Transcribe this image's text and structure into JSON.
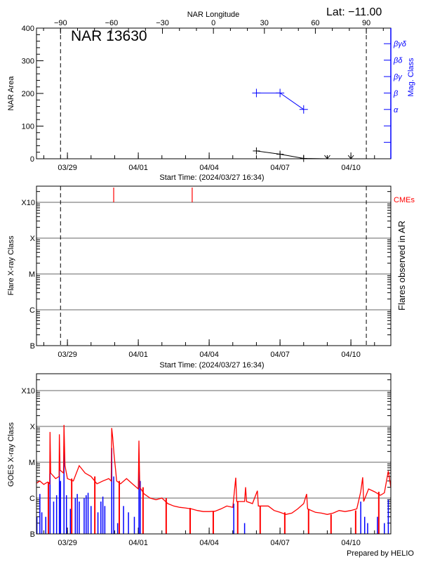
{
  "colors": {
    "axis": "#000000",
    "grid": "#999999",
    "long_channel": "#ff0000",
    "short_channel": "#0000ff",
    "mag_class": "#0000ff",
    "cme": "#ff0000"
  },
  "footer": "Prepared by HELIO",
  "chart_data": [
    {
      "type": "line",
      "title": "NAR 13630",
      "annotation": "Lat: −11.00",
      "xlabel": "Start Time: (2024/03/27 16:34)",
      "x_range": [
        "2024-03-27 16:34",
        "2024-04-11 16:34"
      ],
      "x_ticks": [
        "03/29",
        "04/01",
        "04/04",
        "04/07",
        "04/10"
      ],
      "top_axis": {
        "label": "NAR Longitude",
        "ticks": [
          -90,
          -60,
          -30,
          0,
          30,
          60,
          90
        ],
        "tick_labels": [
          "−90",
          "−60",
          "−30",
          "0",
          "30",
          "60",
          "90"
        ]
      },
      "ylabel": "NAR Area",
      "ylim": [
        0,
        400
      ],
      "y_ticks": [
        0,
        100,
        200,
        300,
        400
      ],
      "y2label": "Mag. Class",
      "y2_ticks": [
        "",
        "",
        "α",
        "β",
        "βγ",
        "βδ",
        "βγδ"
      ],
      "limb_lines": [
        "2024-03-28 17:00",
        "2024-04-10 15:40"
      ],
      "area_points": [
        [
          "2024-04-06 00:00",
          24
        ],
        [
          "2024-04-07 00:00",
          14
        ],
        [
          "2024-04-08 00:00",
          1
        ],
        [
          "2024-04-09 00:00",
          0
        ],
        [
          "2024-04-10 00:00",
          0
        ]
      ],
      "mag_class_points": [
        [
          "2024-04-06 00:00",
          "β"
        ],
        [
          "2024-04-07 00:00",
          "β"
        ],
        [
          "2024-04-08 00:00",
          "α"
        ]
      ]
    },
    {
      "type": "scatter",
      "xlabel": "Start Time: (2024/03/27 16:34)",
      "x_range": [
        "2024-03-27 16:34",
        "2024-04-11 16:34"
      ],
      "x_ticks": [
        "03/29",
        "04/01",
        "04/04",
        "04/07",
        "04/10"
      ],
      "ylabel": "Flare X-ray Class",
      "y2label": "Flares observed in AR",
      "y_scale": "log",
      "y_ticks": [
        1e-07,
        1e-06,
        1e-05,
        0.0001,
        0.001
      ],
      "y_tick_labels": [
        "B",
        "C",
        "M",
        "X",
        "X10"
      ],
      "grid": true,
      "limb_lines": [
        "2024-03-28 17:00",
        "2024-04-10 15:40"
      ],
      "flares": [],
      "cme_label": "CMEs",
      "cme_times": [
        "2024-03-30 23:00",
        "2024-04-03 06:45"
      ]
    },
    {
      "type": "line",
      "x_range": [
        "2024-03-27 16:34",
        "2024-04-11 16:34"
      ],
      "x_ticks": [
        "03/29",
        "04/01",
        "04/04",
        "04/07",
        "04/10"
      ],
      "ylabel": "GOES X-ray Class",
      "y_scale": "log",
      "y_ticks": [
        1e-07,
        1e-06,
        1e-05,
        0.0001,
        0.001
      ],
      "y_tick_labels": [
        "B",
        "C",
        "M",
        "X",
        "X10"
      ],
      "grid": true,
      "long_channel": [
        [
          "2024-03-27 16:34",
          2.6e-06
        ],
        [
          "2024-03-27 20:00",
          3e-06
        ],
        [
          "2024-03-28 00:00",
          2.4e-06
        ],
        [
          "2024-03-28 04:00",
          2.8e-06
        ],
        [
          "2024-03-28 06:00",
          2.5e-06
        ],
        [
          "2024-03-28 06:20",
          7e-05
        ],
        [
          "2024-03-28 07:00",
          5e-06
        ],
        [
          "2024-03-28 12:00",
          3.5e-06
        ],
        [
          "2024-03-28 15:30",
          4e-06
        ],
        [
          "2024-03-28 15:50",
          6e-05
        ],
        [
          "2024-03-28 16:30",
          6e-06
        ],
        [
          "2024-03-28 20:00",
          5e-06
        ],
        [
          "2024-03-28 20:30",
          0.00011
        ],
        [
          "2024-03-28 21:30",
          8e-06
        ],
        [
          "2024-03-29 00:00",
          3.5e-06
        ],
        [
          "2024-03-29 06:00",
          3e-06
        ],
        [
          "2024-03-29 12:00",
          8e-06
        ],
        [
          "2024-03-29 18:00",
          5e-06
        ],
        [
          "2024-03-30 00:00",
          4e-06
        ],
        [
          "2024-03-30 06:00",
          2.5e-06
        ],
        [
          "2024-03-30 12:00",
          3e-06
        ],
        [
          "2024-03-30 18:00",
          3.5e-06
        ],
        [
          "2024-03-30 20:30",
          3e-06
        ],
        [
          "2024-03-30 21:00",
          9e-05
        ],
        [
          "2024-03-30 22:00",
          5e-05
        ],
        [
          "2024-03-30 23:30",
          1.5e-05
        ],
        [
          "2024-03-31 01:00",
          6e-06
        ],
        [
          "2024-03-31 02:00",
          3e-06
        ],
        [
          "2024-03-31 06:00",
          2.5e-06
        ],
        [
          "2024-03-31 12:00",
          3.5e-06
        ],
        [
          "2024-03-31 18:00",
          2.5e-06
        ],
        [
          "2024-04-01 00:00",
          1.8e-06
        ],
        [
          "2024-04-01 00:40",
          4e-05
        ],
        [
          "2024-04-01 01:30",
          2e-06
        ],
        [
          "2024-04-01 06:00",
          1.3e-06
        ],
        [
          "2024-04-01 12:00",
          1e-06
        ],
        [
          "2024-04-01 18:00",
          9e-07
        ],
        [
          "2024-04-02 00:00",
          1e-06
        ],
        [
          "2024-04-02 06:00",
          7e-07
        ],
        [
          "2024-04-02 12:00",
          6e-07
        ],
        [
          "2024-04-02 18:00",
          5.5e-07
        ],
        [
          "2024-04-03 00:00",
          5.3e-07
        ],
        [
          "2024-04-03 06:00",
          5e-07
        ],
        [
          "2024-04-03 12:00",
          4.5e-07
        ],
        [
          "2024-04-03 18:00",
          4.2e-07
        ],
        [
          "2024-04-04 00:00",
          4.2e-07
        ],
        [
          "2024-04-04 06:00",
          4.3e-07
        ],
        [
          "2024-04-04 12:00",
          5e-07
        ],
        [
          "2024-04-04 18:00",
          6e-07
        ],
        [
          "2024-04-05 00:00",
          5.5e-07
        ],
        [
          "2024-04-05 03:00",
          3.7e-06
        ],
        [
          "2024-04-05 04:00",
          8e-07
        ],
        [
          "2024-04-05 12:00",
          8e-07
        ],
        [
          "2024-04-05 13:00",
          2e-06
        ],
        [
          "2024-04-05 14:00",
          8e-07
        ],
        [
          "2024-04-05 20:00",
          7e-07
        ],
        [
          "2024-04-06 01:00",
          1.6e-06
        ],
        [
          "2024-04-06 02:00",
          6e-07
        ],
        [
          "2024-04-06 12:00",
          6e-07
        ],
        [
          "2024-04-06 18:00",
          4.5e-07
        ],
        [
          "2024-04-07 00:00",
          4e-07
        ],
        [
          "2024-04-07 06:00",
          3.5e-07
        ],
        [
          "2024-04-07 12:00",
          3.8e-07
        ],
        [
          "2024-04-07 18:00",
          5e-07
        ],
        [
          "2024-04-08 00:00",
          7e-07
        ],
        [
          "2024-04-08 03:00",
          1.3e-06
        ],
        [
          "2024-04-08 04:00",
          5e-07
        ],
        [
          "2024-04-08 12:00",
          4e-07
        ],
        [
          "2024-04-08 18:00",
          3.8e-07
        ],
        [
          "2024-04-09 00:00",
          3.5e-07
        ],
        [
          "2024-04-09 06:00",
          3.8e-07
        ],
        [
          "2024-04-09 12:00",
          4.5e-07
        ],
        [
          "2024-04-09 18:00",
          4.2e-07
        ],
        [
          "2024-04-10 00:00",
          4.5e-07
        ],
        [
          "2024-04-10 06:00",
          5e-07
        ],
        [
          "2024-04-10 10:00",
          1.5e-06
        ],
        [
          "2024-04-10 12:00",
          3.8e-06
        ],
        [
          "2024-04-10 13:00",
          8e-07
        ],
        [
          "2024-04-10 18:00",
          1.8e-06
        ],
        [
          "2024-04-11 00:00",
          1.5e-06
        ],
        [
          "2024-04-11 06:00",
          1.2e-06
        ],
        [
          "2024-04-11 10:00",
          1.4e-06
        ],
        [
          "2024-04-11 14:00",
          5.7e-06
        ],
        [
          "2024-04-11 16:34",
          2e-06
        ]
      ],
      "long_channel_dropouts": [
        "2024-03-28 04:40",
        "2024-03-29 04:20",
        "2024-03-30 03:50",
        "2024-03-31 04:40",
        "2024-04-01 04:50",
        "2024-04-02 04:20",
        "2024-04-03 04:40",
        "2024-04-04 04:10",
        "2024-04-05 05:00",
        "2024-04-06 03:50",
        "2024-04-07 04:50",
        "2024-04-08 05:00",
        "2024-04-09 03:50",
        "2024-04-10 04:50",
        "2024-04-11 04:20"
      ],
      "short_channel": [
        [
          "2024-03-27 17:00",
          3e-07
        ],
        [
          "2024-03-27 20:00",
          1.3e-06
        ],
        [
          "2024-03-27 22:00",
          4e-07
        ],
        [
          "2024-03-28 02:00",
          3e-07
        ],
        [
          "2024-03-28 06:20",
          2e-05
        ],
        [
          "2024-03-28 10:00",
          8e-07
        ],
        [
          "2024-03-28 13:00",
          1.2e-06
        ],
        [
          "2024-03-28 15:50",
          1e-05
        ],
        [
          "2024-03-28 17:00",
          3e-06
        ],
        [
          "2024-03-28 20:30",
          2.8e-05
        ],
        [
          "2024-03-28 23:00",
          1.2e-06
        ],
        [
          "2024-03-29 03:00",
          5e-07
        ],
        [
          "2024-03-29 08:00",
          1e-06
        ],
        [
          "2024-03-29 10:00",
          1.3e-06
        ],
        [
          "2024-03-29 12:00",
          8e-07
        ],
        [
          "2024-03-29 17:00",
          1e-06
        ],
        [
          "2024-03-29 19:00",
          1.2e-06
        ],
        [
          "2024-03-29 21:00",
          1.4e-06
        ],
        [
          "2024-03-30 00:00",
          6e-07
        ],
        [
          "2024-03-30 07:00",
          4e-07
        ],
        [
          "2024-03-30 10:00",
          8e-07
        ],
        [
          "2024-03-30 12:00",
          1.1e-06
        ],
        [
          "2024-03-30 14:00",
          6e-07
        ],
        [
          "2024-03-30 21:00",
          2.5e-05
        ],
        [
          "2024-03-30 23:00",
          4e-06
        ],
        [
          "2024-03-31 03:00",
          2e-07
        ],
        [
          "2024-03-31 09:00",
          6e-07
        ],
        [
          "2024-03-31 14:00",
          4e-07
        ],
        [
          "2024-03-31 20:00",
          3e-07
        ],
        [
          "2024-04-01 00:40",
          1.1e-05
        ],
        [
          "2024-04-01 02:00",
          3e-06
        ],
        [
          "2024-04-05 01:00",
          7e-07
        ],
        [
          "2024-04-05 12:00",
          2e-07
        ],
        [
          "2024-04-10 10:00",
          8e-07
        ],
        [
          "2024-04-10 14:00",
          3e-07
        ],
        [
          "2024-04-10 17:00",
          2e-07
        ],
        [
          "2024-04-11 03:00",
          3e-07
        ],
        [
          "2024-04-11 10:00",
          2e-07
        ],
        [
          "2024-04-11 14:00",
          9e-07
        ]
      ]
    }
  ]
}
